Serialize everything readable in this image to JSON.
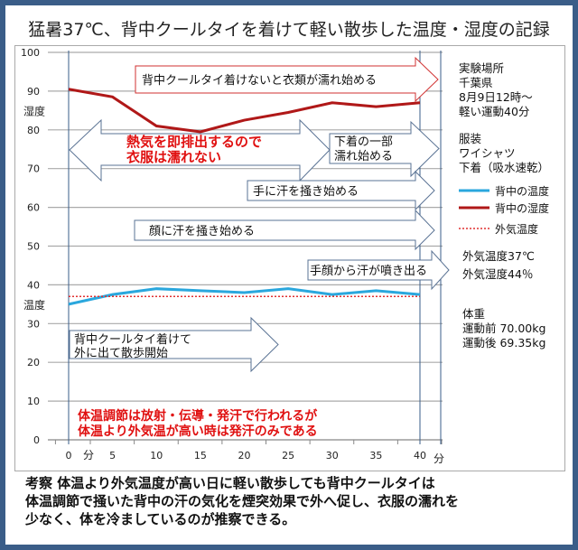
{
  "title": "猛暑37℃、背中クールタイを着けて軽い散歩した温度・湿度の記録",
  "chart_data": {
    "type": "line",
    "x": [
      0,
      5,
      10,
      15,
      20,
      25,
      30,
      35,
      40
    ],
    "x_tick_labels": [
      "0",
      "5",
      "10",
      "15",
      "20",
      "25",
      "30",
      "35",
      "40"
    ],
    "x_unit_labels": [
      "分",
      "分"
    ],
    "ylim": [
      0,
      100
    ],
    "y_ticks": [
      0,
      10,
      20,
      30,
      40,
      50,
      60,
      70,
      80,
      90,
      100
    ],
    "y_labels": [
      "湿度",
      "温度"
    ],
    "grid": true,
    "legend_position": "right",
    "series": [
      {
        "name": "背中の温度",
        "color": "#2aa7dd",
        "style": "solid",
        "values": [
          35,
          37.5,
          39,
          38.5,
          38,
          39,
          37.5,
          38.5,
          37.5
        ]
      },
      {
        "name": "背中の湿度",
        "color": "#b01818",
        "style": "solid",
        "values": [
          90.5,
          88.5,
          81,
          79.5,
          82.5,
          84.5,
          87,
          86,
          87
        ]
      },
      {
        "name": "外気温度",
        "color": "#e03030",
        "style": "dotted",
        "values": [
          37,
          37,
          37,
          37,
          37,
          37,
          37,
          37,
          37
        ]
      }
    ],
    "annotations": [
      "背中クールタイ着けないと衣類が濡れ始める",
      "熱気を即排出するので",
      "衣服は濡れない",
      "下着の一部",
      "濡れ始める",
      "手に汗を掻き始める",
      "顔に汗を掻き始める",
      "手顔から汗が噴き出る",
      "背中クールタイ着けて",
      "外に出て散歩開始",
      "体温調節は放射・伝導・発汗で行われるが",
      "体温より外気温が高い時は発汗のみである"
    ]
  },
  "side": {
    "place": [
      "実験場所",
      "千葉県",
      "8月9日12時～",
      "軽い運動40分"
    ],
    "clothes": [
      "服装",
      "ワイシャツ",
      "下着（吸水速乾）"
    ],
    "outside": [
      "外気温度37℃",
      "外気湿度44％"
    ],
    "weight": [
      "体重",
      "運動前 70.00kg",
      "運動後 69.35kg"
    ]
  },
  "conclusion": [
    "考察 体温より外気温度が高い日に軽い散歩しても背中クールタイは",
    "体温調節で掻いた背中の汗の気化を煙突効果で外へ促し、衣服の濡れを",
    "少なく、体を冷ましているのが推察できる。"
  ]
}
